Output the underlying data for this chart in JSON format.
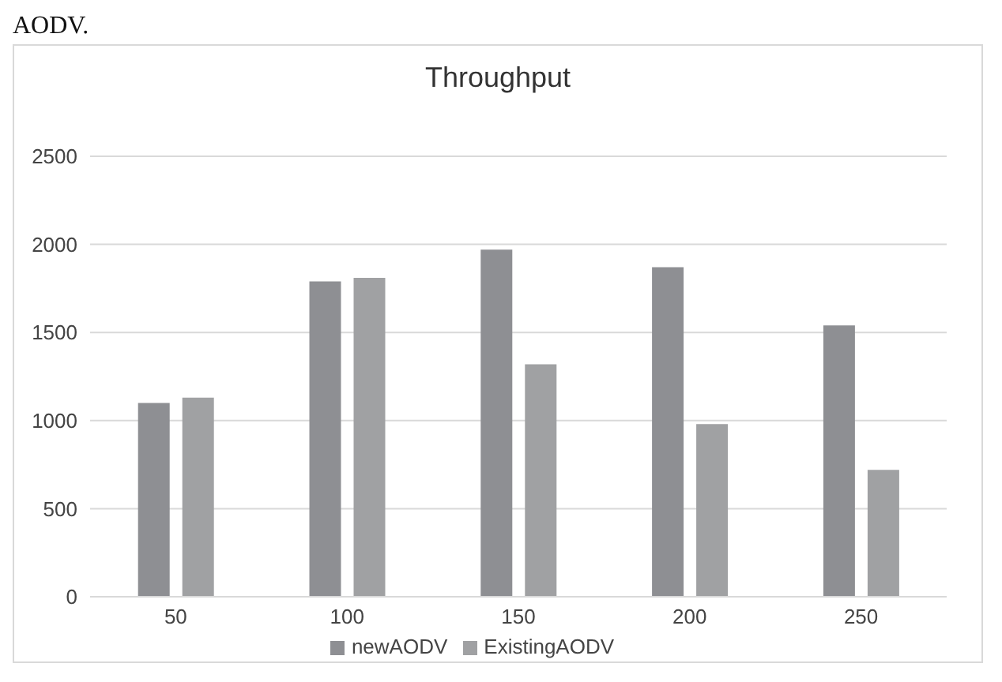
{
  "chart_data": {
    "type": "bar",
    "title": "Throughput",
    "annotations": [
      "AODV."
    ],
    "categories": [
      "50",
      "100",
      "150",
      "200",
      "250"
    ],
    "series": [
      {
        "name": "newAODV",
        "color": "#8e8f93",
        "values": [
          1100,
          1790,
          1970,
          1870,
          1540
        ]
      },
      {
        "name": "ExistingAODV",
        "color": "#a0a1a3",
        "values": [
          1130,
          1810,
          1320,
          980,
          720
        ]
      }
    ],
    "ylim": [
      0,
      2500
    ],
    "yticks": [
      0,
      500,
      1000,
      1500,
      2000,
      2500
    ],
    "grid": "y",
    "legend": "bottom"
  }
}
